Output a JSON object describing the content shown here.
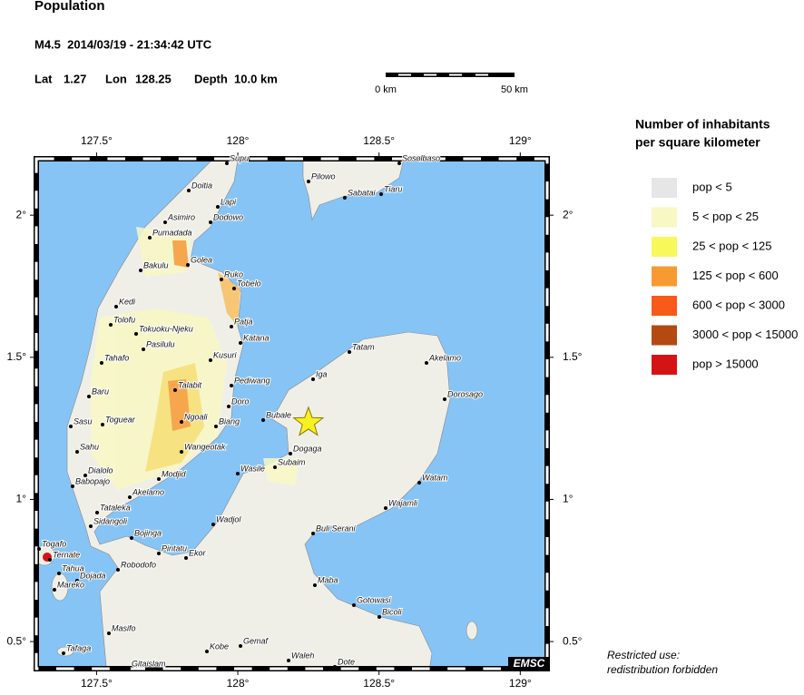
{
  "header": {
    "title": "Population",
    "event": "M4.5  2014/03/19 - 21:34:42 UTC",
    "lat_label": "Lat",
    "lat": 1.27,
    "lon_label": "Lon",
    "lon": 128.25,
    "depth": "Depth  10.0 km"
  },
  "scale_bar": {
    "start": "0 km",
    "end": "50 km"
  },
  "map": {
    "lon_range": [
      127.277,
      129.105
    ],
    "lat_range": [
      0.395,
      2.208
    ],
    "lon_ticks": [
      {
        "value": 127.5,
        "label": "127.5°"
      },
      {
        "value": 128,
        "label": "128°"
      },
      {
        "value": 128.5,
        "label": "128.5°"
      },
      {
        "value": 129,
        "label": "129°"
      }
    ],
    "lat_ticks": [
      {
        "value": 2,
        "label": "2°"
      },
      {
        "value": 1.5,
        "label": "1.5°"
      },
      {
        "value": 1,
        "label": "1°"
      },
      {
        "value": 0.5,
        "label": "0.5°"
      }
    ],
    "towns": [
      "Supu",
      "Doitia",
      "Lapi",
      "Dodowo",
      "Asimiro",
      "Pumadada",
      "Golea",
      "Bakulu",
      "Ruko",
      "Tobelo",
      "Kedi",
      "Tolofu",
      "Tokuoku-Njeku",
      "Patja",
      "Pasilulu",
      "Katana",
      "Tahafo",
      "Kusuri",
      "Talabit",
      "Pediwang",
      "Baru",
      "Doro",
      "Ngoali",
      "Sasu",
      "Toguear",
      "Biang",
      "Bubale",
      "Iga",
      "Tatam",
      "Akelamo",
      "Dorosago",
      "Dogaga",
      "Subaim",
      "Wasile",
      "Wangeotak",
      "Sahu",
      "Dialolo",
      "Babopajo",
      "Modjid",
      "Akelamo",
      "Watam",
      "Wajamli",
      "Tataleka",
      "Wadjol",
      "Sidangoli",
      "Buli Serani",
      "Bojinga",
      "Togafo",
      "Pintatu",
      "Ekor",
      "Ternate",
      "Robodofo",
      "Tahua",
      "Dojada",
      "Mareko",
      "Maba",
      "Gotowasi",
      "Bicoli",
      "Masifo",
      "Tafaga",
      "Gemaf",
      "Kobe",
      "Waleh",
      "Dote",
      "Gitaislam",
      "Pilowo",
      "Sabatai",
      "Tiaru",
      "Sosolbaso"
    ],
    "badge": "EMSC"
  },
  "legend": {
    "title": [
      "Number of inhabitants",
      "per square kilometer"
    ],
    "items": [
      {
        "label": "pop < 5",
        "color": "#e6e6e6"
      },
      {
        "label": "5 < pop < 25",
        "color": "#f8f8c4"
      },
      {
        "label": "25 < pop < 125",
        "color": "#f8f85a"
      },
      {
        "label": "125 < pop < 600",
        "color": "#f89a32"
      },
      {
        "label": "600 < pop < 3000",
        "color": "#f85a1a"
      },
      {
        "label": "3000 < pop < 15000",
        "color": "#b44a12"
      },
      {
        "label": "pop > 15000",
        "color": "#d41414"
      }
    ]
  },
  "footer": [
    "Restricted use:",
    "redistribution forbidden"
  ]
}
